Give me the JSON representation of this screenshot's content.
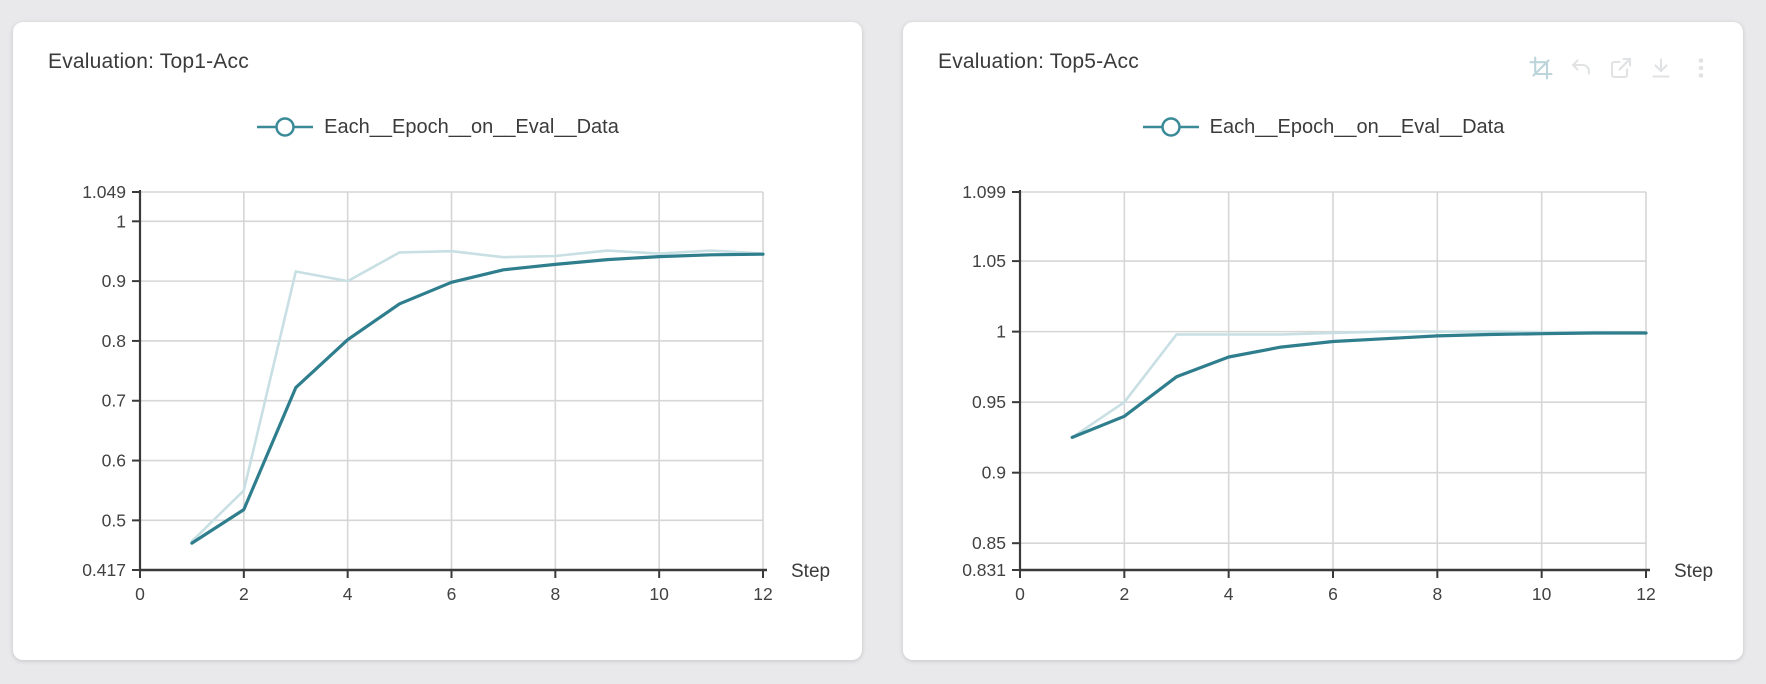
{
  "colors": {
    "raw_line": "#c8dfe3",
    "smoothed_line": "#2f7e8d",
    "grid": "#d6d6d6",
    "axis": "#3a3a3a",
    "text": "#3b3b3b",
    "tick_text": "#424242",
    "legend_marker": "#3a8a97",
    "toolbar_icon": "#e0e2e3",
    "toolbar_icon_active": "#bdd5da",
    "card_bg": "#ffffff",
    "page_bg": "#e9e9eb"
  },
  "cards": [
    {
      "title": "Evaluation: Top1-Acc",
      "legend": "Each__Epoch__on__Eval__Data",
      "toolbar_icons": []
    },
    {
      "title": "Evaluation: Top5-Acc",
      "legend": "Each__Epoch__on__Eval__Data",
      "toolbar_icons": [
        "crop-icon",
        "undo-icon",
        "external-link-icon",
        "download-icon",
        "kebab-menu-icon"
      ]
    }
  ],
  "chart_data": [
    {
      "type": "line",
      "title": "Evaluation: Top1-Acc",
      "xlabel": "Step",
      "ylabel": "",
      "x": [
        1,
        2,
        3,
        4,
        5,
        6,
        7,
        8,
        9,
        10,
        11,
        12
      ],
      "series": [
        {
          "name": "Each__Epoch__on__Eval__Data (raw)",
          "role": "raw",
          "values": [
            0.465,
            0.55,
            0.916,
            0.9,
            0.948,
            0.95,
            0.94,
            0.942,
            0.951,
            0.946,
            0.951,
            0.946
          ]
        },
        {
          "name": "Each__Epoch__on__Eval__Data (smoothed)",
          "role": "smoothed",
          "values": [
            0.462,
            0.518,
            0.722,
            0.802,
            0.862,
            0.898,
            0.919,
            0.928,
            0.936,
            0.941,
            0.944,
            0.945
          ]
        }
      ],
      "xlim": [
        0,
        12
      ],
      "ylim": [
        0.417,
        1.049
      ],
      "xticks": [
        0,
        2,
        4,
        6,
        8,
        10,
        12
      ],
      "yticks": [
        1.049,
        1,
        0.9,
        0.8,
        0.7,
        0.6,
        0.5,
        0.417
      ],
      "grid": true,
      "legend_position": "top-center"
    },
    {
      "type": "line",
      "title": "Evaluation: Top5-Acc",
      "xlabel": "Step",
      "ylabel": "",
      "x": [
        1,
        2,
        3,
        4,
        5,
        6,
        7,
        8,
        9,
        10,
        11,
        12
      ],
      "series": [
        {
          "name": "Each__Epoch__on__Eval__Data (raw)",
          "role": "raw",
          "values": [
            0.925,
            0.95,
            0.998,
            0.998,
            0.998,
            0.999,
            1.0,
            1.0,
            1.0,
            0.9995,
            0.9995,
            0.999
          ]
        },
        {
          "name": "Each__Epoch__on__Eval__Data (smoothed)",
          "role": "smoothed",
          "values": [
            0.925,
            0.94,
            0.968,
            0.982,
            0.989,
            0.993,
            0.995,
            0.997,
            0.998,
            0.9985,
            0.999,
            0.999
          ]
        }
      ],
      "xlim": [
        0,
        12
      ],
      "ylim": [
        0.831,
        1.099
      ],
      "xticks": [
        0,
        2,
        4,
        6,
        8,
        10,
        12
      ],
      "yticks": [
        1.099,
        1.05,
        1,
        0.95,
        0.9,
        0.85,
        0.831
      ],
      "grid": true,
      "legend_position": "top-center"
    }
  ]
}
